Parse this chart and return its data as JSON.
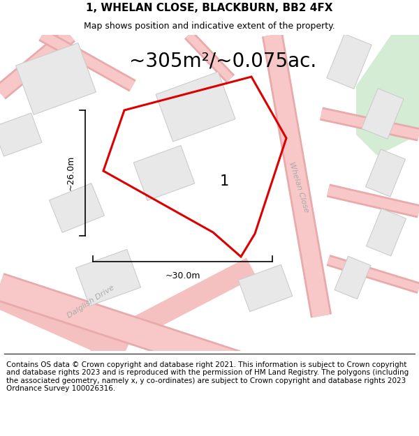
{
  "title": "1, WHELAN CLOSE, BLACKBURN, BB2 4FX",
  "subtitle": "Map shows position and indicative extent of the property.",
  "area_text": "~305m²/~0.075ac.",
  "label_number": "1",
  "dim_width": "~30.0m",
  "dim_height": "~26.0m",
  "street_label_1": "Dalglish Drive",
  "street_label_2": "Whelan Close",
  "footer": "Contains OS data © Crown copyright and database right 2021. This information is subject to Crown copyright and database rights 2023 and is reproduced with the permission of HM Land Registry. The polygons (including the associated geometry, namely x, y co-ordinates) are subject to Crown copyright and database rights 2023 Ordnance Survey 100026316.",
  "map_bg": "#ffffff",
  "road_color": "#f5c0c0",
  "building_color": "#e8e8e8",
  "building_edge_color": "#cccccc",
  "plot_color": "#dd0000",
  "green_color": "#d4ecd4",
  "title_fontsize": 11,
  "subtitle_fontsize": 9,
  "area_fontsize": 20,
  "footer_fontsize": 7.5,
  "dim_fontsize": 9,
  "street_fontsize": 8,
  "label_fontsize": 15
}
